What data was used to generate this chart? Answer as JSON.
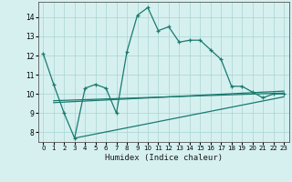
{
  "main_x": [
    0,
    1,
    2,
    3,
    4,
    5,
    6,
    7,
    8,
    9,
    10,
    11,
    12,
    13,
    14,
    15,
    16,
    17,
    18,
    19,
    20,
    21,
    22,
    23
  ],
  "main_y": [
    12.1,
    10.5,
    9.0,
    7.7,
    10.3,
    10.5,
    10.3,
    9.0,
    12.2,
    14.1,
    14.5,
    13.3,
    13.5,
    12.7,
    12.8,
    12.8,
    12.3,
    11.8,
    10.4,
    10.4,
    10.1,
    9.8,
    10.0,
    10.0
  ],
  "line1_x": [
    1,
    23
  ],
  "line1_y": [
    9.65,
    10.05
  ],
  "line2_x": [
    1,
    23
  ],
  "line2_y": [
    9.55,
    10.15
  ],
  "line3_x": [
    3,
    23
  ],
  "line3_y": [
    7.7,
    9.85
  ],
  "line_color": "#1a7a6e",
  "bg_color": "#d6f0f0",
  "grid_color": "#b0d8d8",
  "xlabel": "Humidex (Indice chaleur)",
  "xlim": [
    -0.5,
    23.5
  ],
  "ylim": [
    7.5,
    14.8
  ],
  "yticks": [
    8,
    9,
    10,
    11,
    12,
    13,
    14
  ],
  "xticks": [
    0,
    1,
    2,
    3,
    4,
    5,
    6,
    7,
    8,
    9,
    10,
    11,
    12,
    13,
    14,
    15,
    16,
    17,
    18,
    19,
    20,
    21,
    22,
    23
  ]
}
